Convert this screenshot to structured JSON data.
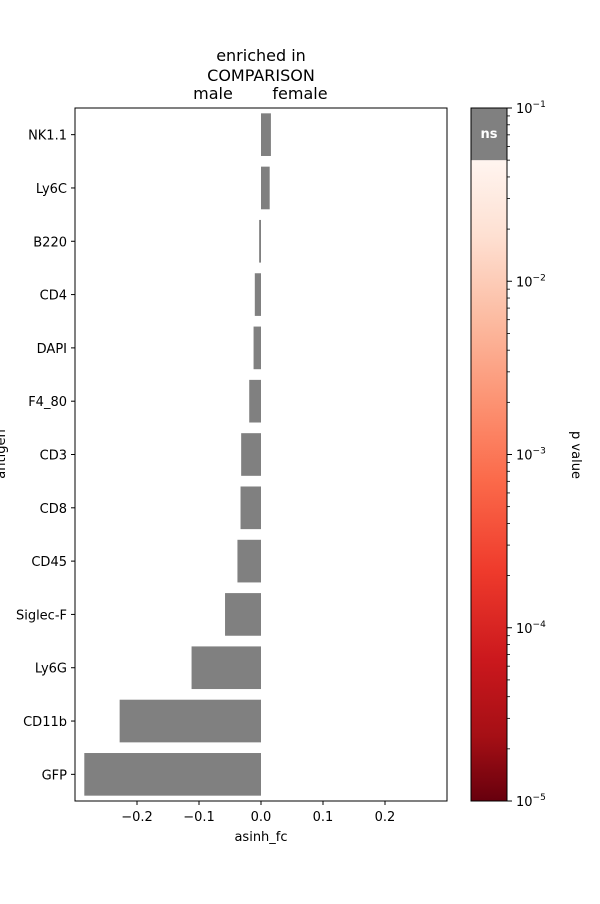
{
  "chart_data": {
    "type": "bar",
    "orientation": "horizontal",
    "title": [
      "enriched in",
      "COMPARISON"
    ],
    "direction_labels": {
      "left": "male",
      "right": "female"
    },
    "xlabel": "asinh_fc",
    "ylabel": "antigen",
    "xlim": [
      -0.3,
      0.3
    ],
    "xticks": [
      -0.2,
      -0.1,
      0.0,
      0.1,
      0.2
    ],
    "xtick_labels": [
      "−0.2",
      "−0.1",
      "0.0",
      "0.1",
      "0.2"
    ],
    "grid": false,
    "categories": [
      "NK1.1",
      "Ly6C",
      "B220",
      "CD4",
      "DAPI",
      "F4_80",
      "CD3",
      "CD8",
      "CD45",
      "Siglec-F",
      "Ly6G",
      "CD11b",
      "GFP"
    ],
    "values": [
      0.016,
      0.014,
      -0.003,
      -0.01,
      -0.012,
      -0.019,
      -0.032,
      -0.033,
      -0.038,
      -0.058,
      -0.112,
      -0.228,
      -0.285
    ],
    "bar_color": "#808080",
    "colorbar": {
      "label": "p value",
      "scale": "log",
      "range": [
        1e-05,
        0.1
      ],
      "tick_labels": [
        {
          "base": "10",
          "exp": "−1",
          "value": 0.1
        },
        {
          "base": "10",
          "exp": "−2",
          "value": 0.01
        },
        {
          "base": "10",
          "exp": "−3",
          "value": 0.001
        },
        {
          "base": "10",
          "exp": "−4",
          "value": 0.0001
        },
        {
          "base": "10",
          "exp": "−5",
          "value": 1e-05
        }
      ],
      "ns_label": "ns",
      "ns_threshold": 0.05,
      "ns_color": "#808080",
      "colormap": "Reds_r"
    }
  }
}
